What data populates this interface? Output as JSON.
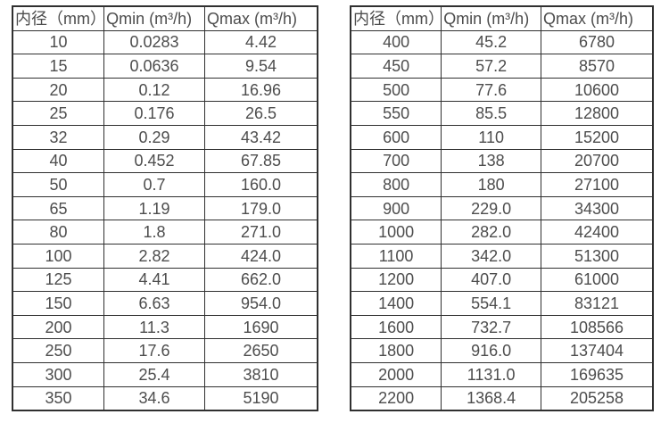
{
  "page": {
    "background_color": "#ffffff",
    "border_color": "#303030",
    "text_color": "#4d4d4d"
  },
  "tables": [
    {
      "name": "flow-spec-small-diameters",
      "headers": [
        "内径（mm）",
        "Qmin (m³/h)",
        "Qmax (m³/h)"
      ],
      "rows": [
        [
          "10",
          "0.0283",
          "4.42"
        ],
        [
          "15",
          "0.0636",
          "9.54"
        ],
        [
          "20",
          "0.12",
          "16.96"
        ],
        [
          "25",
          "0.176",
          "26.5"
        ],
        [
          "32",
          "0.29",
          "43.42"
        ],
        [
          "40",
          "0.452",
          "67.85"
        ],
        [
          "50",
          "0.7",
          "160.0"
        ],
        [
          "65",
          "1.19",
          "179.0"
        ],
        [
          "80",
          "1.8",
          "271.0"
        ],
        [
          "100",
          "2.82",
          "424.0"
        ],
        [
          "125",
          "4.41",
          "662.0"
        ],
        [
          "150",
          "6.63",
          "954.0"
        ],
        [
          "200",
          "11.3",
          "1690"
        ],
        [
          "250",
          "17.6",
          "2650"
        ],
        [
          "300",
          "25.4",
          "3810"
        ],
        [
          "350",
          "34.6",
          "5190"
        ]
      ]
    },
    {
      "name": "flow-spec-large-diameters",
      "headers": [
        "内径（mm）",
        "Qmin (m³/h)",
        "Qmax (m³/h)"
      ],
      "rows": [
        [
          "400",
          "45.2",
          "6780"
        ],
        [
          "450",
          "57.2",
          "8570"
        ],
        [
          "500",
          "77.6",
          "10600"
        ],
        [
          "550",
          "85.5",
          "12800"
        ],
        [
          "600",
          "110",
          "15200"
        ],
        [
          "700",
          "138",
          "20700"
        ],
        [
          "800",
          "180",
          "27100"
        ],
        [
          "900",
          "229.0",
          "34300"
        ],
        [
          "1000",
          "282.0",
          "42400"
        ],
        [
          "1100",
          "342.0",
          "51300"
        ],
        [
          "1200",
          "407.0",
          "61000"
        ],
        [
          "1400",
          "554.1",
          "83121"
        ],
        [
          "1600",
          "732.7",
          "108566"
        ],
        [
          "1800",
          "916.0",
          "137404"
        ],
        [
          "2000",
          "1131.0",
          "169635"
        ],
        [
          "2200",
          "1368.4",
          "205258"
        ]
      ]
    }
  ]
}
